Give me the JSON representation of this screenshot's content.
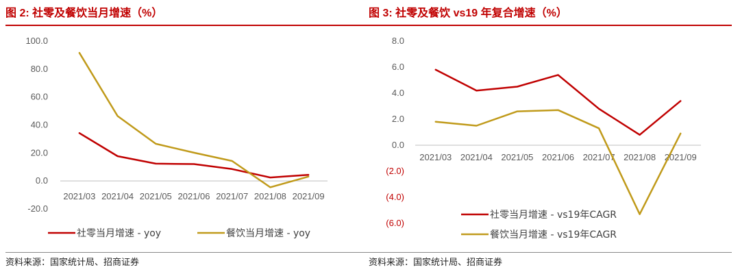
{
  "source_label": "资料来源：国家统计局、招商证券",
  "colors": {
    "primary": "#c00000",
    "secondary": "#c09a1a",
    "axis": "#bfbfbf"
  },
  "chart_data": [
    {
      "type": "line",
      "title": "图 2:  社零及餐饮当月增速（%）",
      "categories": [
        "2021/03",
        "2021/04",
        "2021/05",
        "2021/06",
        "2021/07",
        "2021/08",
        "2021/09"
      ],
      "y_ticks": [
        "100.0",
        "80.0",
        "60.0",
        "40.0",
        "20.0",
        "0.0",
        "-20.0"
      ],
      "ylim": [
        -20,
        100
      ],
      "grid": false,
      "legend_position": "bottom",
      "series": [
        {
          "name": "社零当月增速 - yoy",
          "color": "#c00000",
          "values": [
            34.2,
            17.7,
            12.4,
            12.1,
            8.5,
            2.5,
            4.4
          ]
        },
        {
          "name": "餐饮当月增速 - yoy",
          "color": "#c09a1a",
          "values": [
            91.6,
            46.4,
            26.6,
            20.2,
            14.3,
            -4.5,
            3.1
          ]
        }
      ]
    },
    {
      "type": "line",
      "title": "图 3:  社零及餐饮 vs19 年复合增速（%）",
      "categories": [
        "2021/03",
        "2021/04",
        "2021/05",
        "2021/06",
        "2021/07",
        "2021/08",
        "2021/09"
      ],
      "y_ticks": [
        "8.0",
        "6.0",
        "4.0",
        "2.0",
        "0.0",
        "(2.0)",
        "(4.0)",
        "(6.0)"
      ],
      "ylim": [
        -6,
        8
      ],
      "grid": false,
      "legend_position": "bottom",
      "series": [
        {
          "name": "社零当月增速 - vs19年CAGR",
          "color": "#c00000",
          "values": [
            5.8,
            4.2,
            4.5,
            5.4,
            2.8,
            0.8,
            3.4
          ]
        },
        {
          "name": "餐饮当月增速 - vs19年CAGR",
          "color": "#c09a1a",
          "values": [
            1.8,
            1.5,
            2.6,
            2.7,
            1.3,
            -5.3,
            0.9
          ]
        }
      ]
    }
  ]
}
